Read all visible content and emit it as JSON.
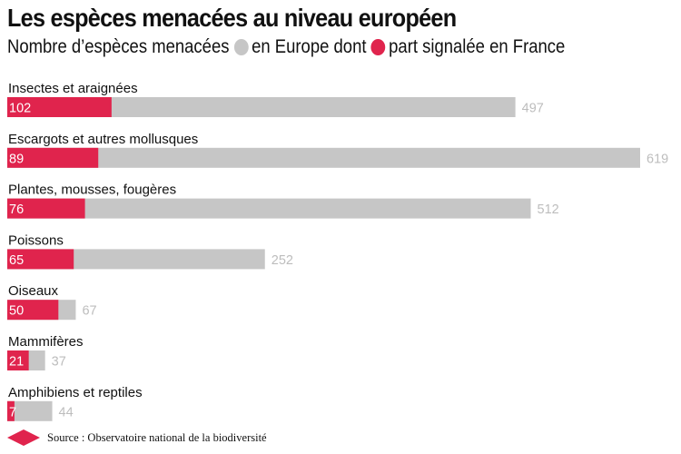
{
  "title": "Les espèces menacées au niveau européen",
  "subtitle": {
    "lead": "Nombre d’espèces menacées",
    "legend_europe": "en Europe dont",
    "legend_france": "part signalée en France"
  },
  "colors": {
    "europe": "#c6c6c6",
    "france": "#e0244d",
    "value_text_europe": "#bdbdbd",
    "value_text_france": "#ffffff"
  },
  "source": "Source : Observatoire national de la biodiversité",
  "chart_data": {
    "type": "bar",
    "orientation": "horizontal",
    "layout": "overlapped",
    "categories": [
      "Insectes et araignées",
      "Escargots et autres mollusques",
      "Plantes, mousses, fougères",
      "Poissons",
      "Oiseaux",
      "Mammifères",
      "Amphibiens et reptiles"
    ],
    "series": [
      {
        "name": "en Europe",
        "values": [
          497,
          619,
          512,
          252,
          67,
          37,
          44
        ]
      },
      {
        "name": "part signalée en France",
        "values": [
          102,
          89,
          76,
          65,
          50,
          21,
          7
        ]
      }
    ],
    "title": "Les espèces menacées au niveau européen",
    "xlim": [
      0,
      619
    ],
    "grid": false,
    "legend": "top-left"
  }
}
